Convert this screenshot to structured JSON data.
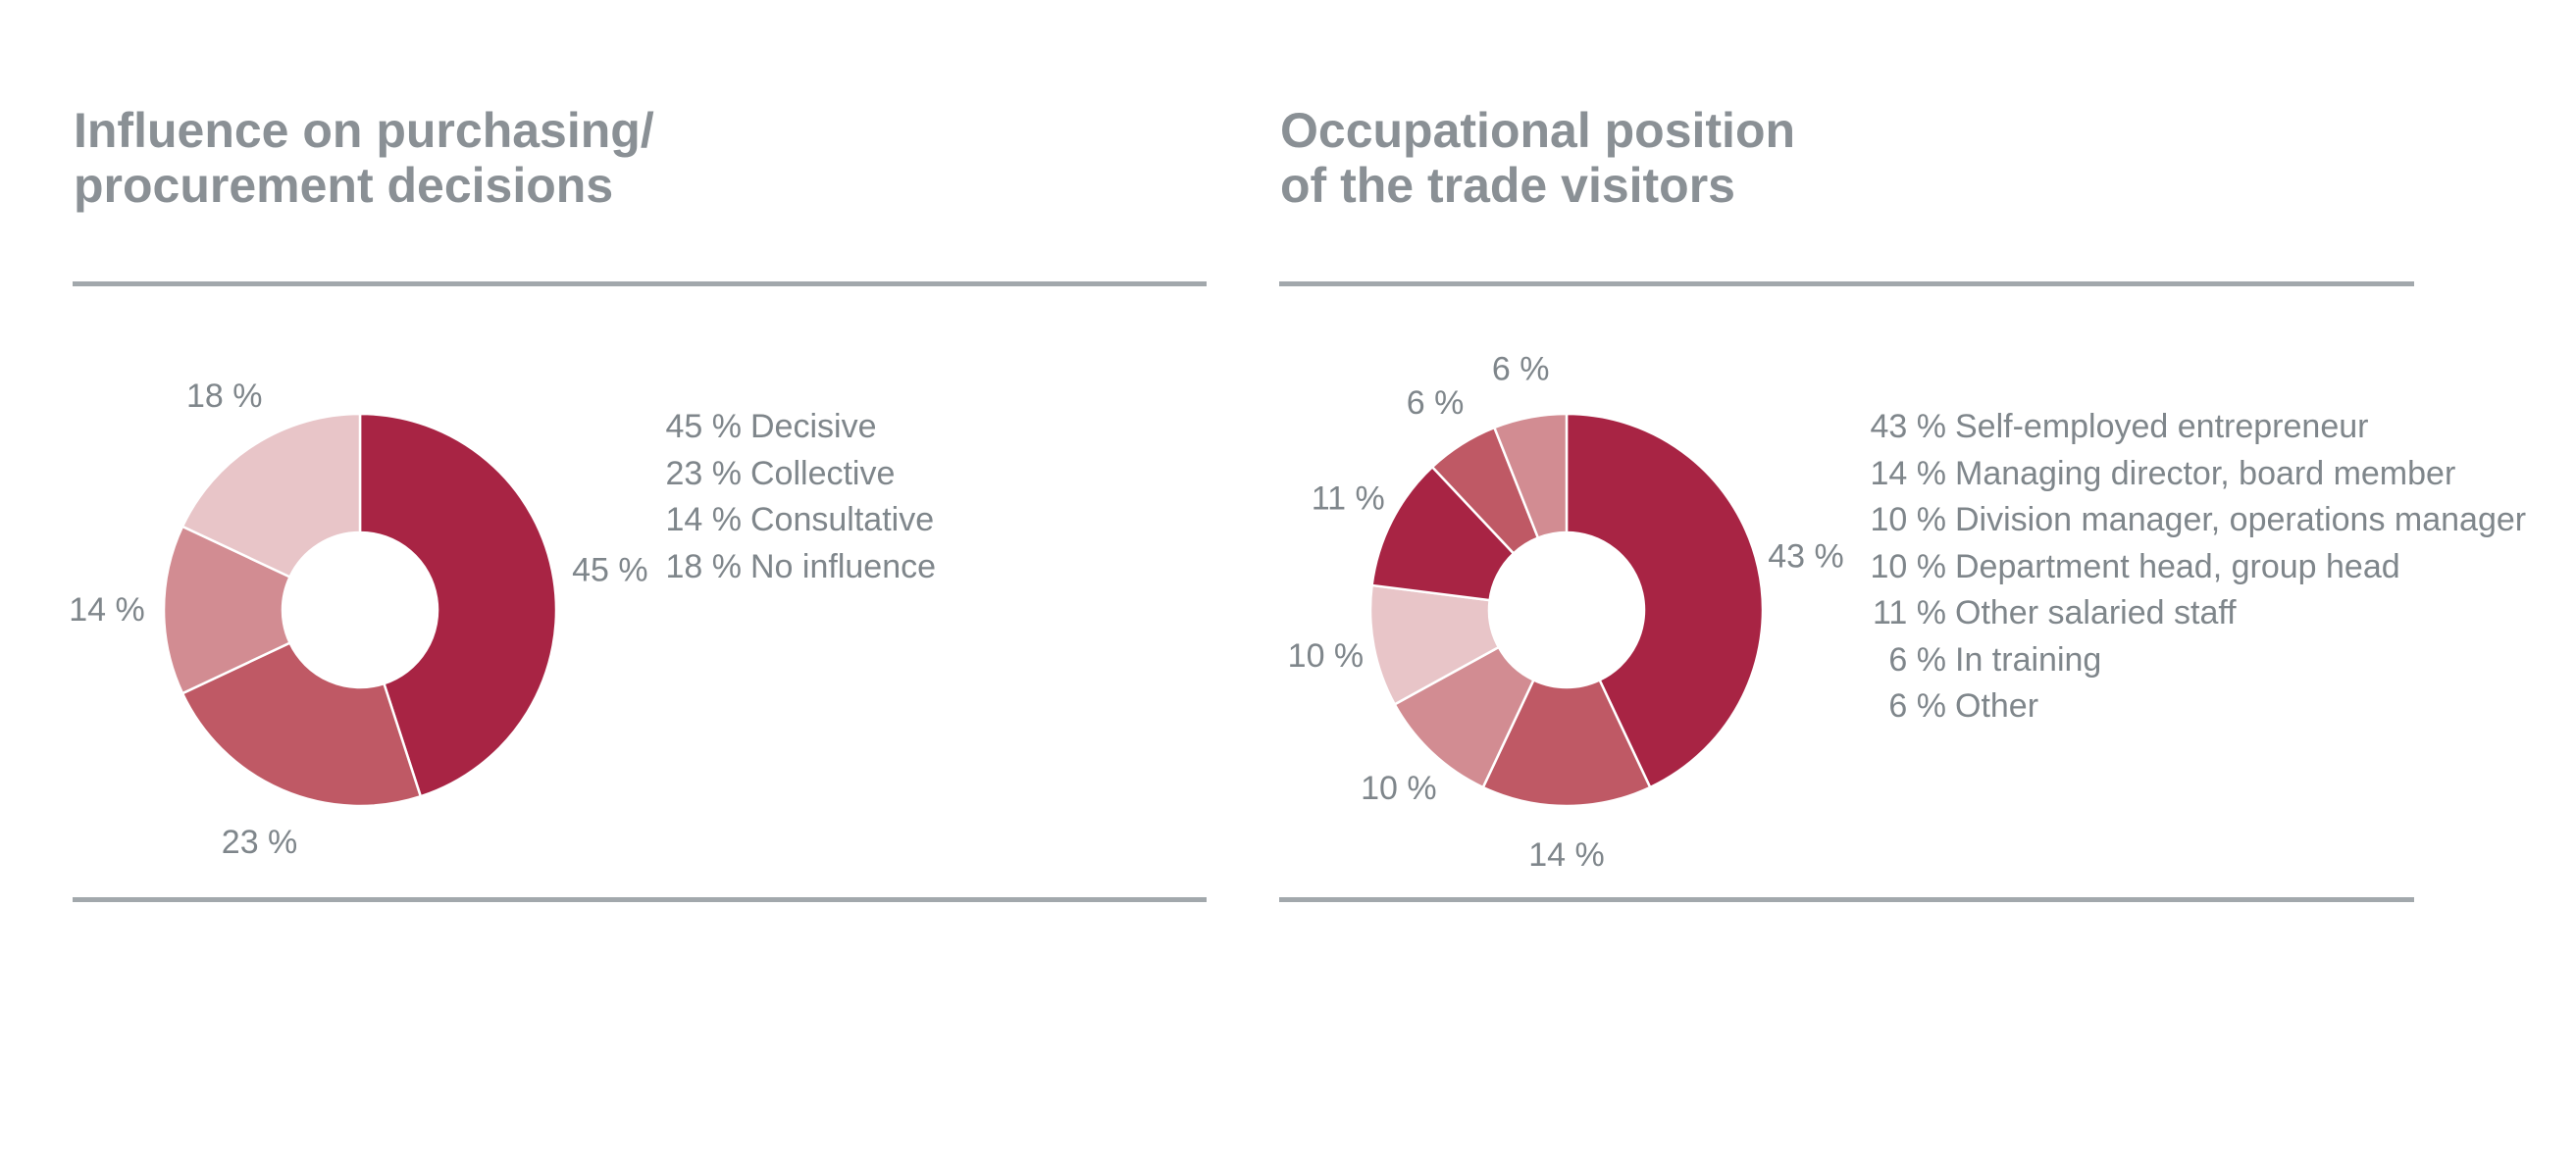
{
  "chart_data": [
    {
      "type": "pie",
      "donut": true,
      "title": "Influence on purchasing/ procurement decisions",
      "title_lines": [
        "Influence on purchasing/",
        "procurement decisions"
      ],
      "categories": [
        "Decisive",
        "Collective",
        "Consultative",
        "No influence"
      ],
      "values": [
        45,
        23,
        14,
        18
      ],
      "unit": "%",
      "slice_labels": [
        "45 %",
        "23 %",
        "14 %",
        "18 %"
      ],
      "legend_entries": [
        {
          "pct": "45 %",
          "label": "Decisive"
        },
        {
          "pct": "23 %",
          "label": "Collective"
        },
        {
          "pct": "14 %",
          "label": "Consultative"
        },
        {
          "pct": "18 %",
          "label": "No influence"
        }
      ],
      "colors": [
        "#a82444",
        "#bf5965",
        "#d28c92",
        "#e8c5c8"
      ],
      "start_angle": 0,
      "direction": "clockwise",
      "legend_position": "right"
    },
    {
      "type": "pie",
      "donut": true,
      "title": "Occupational position of the trade visitors",
      "title_lines": [
        "Occupational position",
        "of the trade visitors"
      ],
      "categories": [
        "Self-employed entrepreneur",
        "Managing director, board member",
        "Division manager, operations manager",
        "Department head, group head",
        "Other salaried staff",
        "In training",
        "Other"
      ],
      "values": [
        43,
        14,
        10,
        10,
        11,
        6,
        6
      ],
      "unit": "%",
      "slice_labels": [
        "43 %",
        "14 %",
        "10 %",
        "10 %",
        "11 %",
        "6 %",
        "6 %"
      ],
      "legend_entries": [
        {
          "pct": "43 %",
          "label": "Self-employed entrepreneur"
        },
        {
          "pct": "14 %",
          "label": "Managing director, board member"
        },
        {
          "pct": "10 %",
          "label": "Division manager, operations manager"
        },
        {
          "pct": "10 %",
          "label": "Department head, group head"
        },
        {
          "pct": "11 %",
          "label": "Other salaried staff"
        },
        {
          "pct": "6 %",
          "label": "In training"
        },
        {
          "pct": "6 %",
          "label": "Other"
        }
      ],
      "colors": [
        "#a82444",
        "#bf5965",
        "#d28c92",
        "#e8c5c8",
        "#a82444",
        "#bf5965",
        "#d28c92"
      ],
      "start_angle": 0,
      "direction": "clockwise",
      "legend_position": "right"
    }
  ]
}
